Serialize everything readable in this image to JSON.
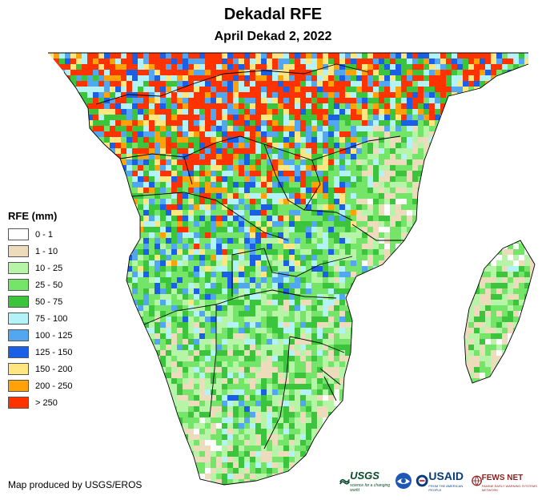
{
  "title": "Dekadal RFE",
  "subtitle": "April Dekad 2, 2022",
  "legend": {
    "title": "RFE (mm)",
    "items": [
      {
        "label": "0 - 1",
        "color": "#ffffff"
      },
      {
        "label": "1 - 10",
        "color": "#eddcbc"
      },
      {
        "label": "10 - 25",
        "color": "#b6f5a8"
      },
      {
        "label": "25 - 50",
        "color": "#75e56a"
      },
      {
        "label": "50 - 75",
        "color": "#3cc43c"
      },
      {
        "label": "75 - 100",
        "color": "#b3f2f7"
      },
      {
        "label": "100 - 125",
        "color": "#53a6f0"
      },
      {
        "label": "125 - 150",
        "color": "#1a5fe6"
      },
      {
        "label": "150 - 200",
        "color": "#ffe680"
      },
      {
        "label": "200 - 250",
        "color": "#ffa20a"
      },
      {
        "label": "> 250",
        "color": "#ff3300"
      }
    ]
  },
  "credit": "Map produced by USGS/EROS",
  "logos": {
    "usgs": "USGS",
    "usgs_tagline": "science for a changing world",
    "usaid": "USAID",
    "usaid_tagline": "FROM THE AMERICAN PEOPLE",
    "fews": "FEWS NET",
    "fews_tagline": "FAMINE EARLY WARNING SYSTEMS NETWORK"
  }
}
